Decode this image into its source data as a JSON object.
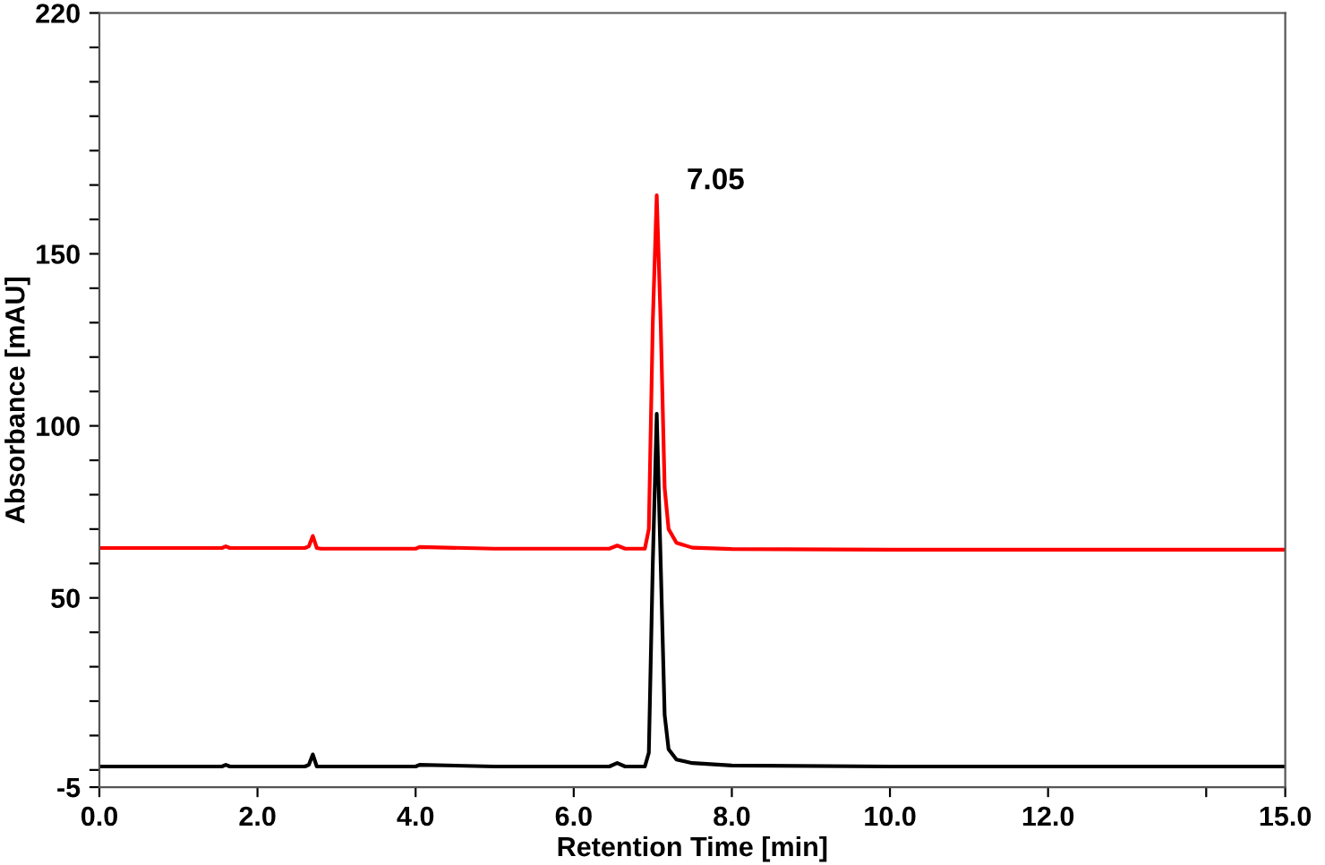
{
  "chart_data": {
    "type": "line",
    "xlabel": "Retention Time [min]",
    "ylabel": "Absorbance [mAU]",
    "xlim": [
      0,
      15
    ],
    "ylim": [
      -5,
      220
    ],
    "xticks": [
      {
        "value": 0,
        "label": "0.0"
      },
      {
        "value": 2,
        "label": "2.0"
      },
      {
        "value": 4,
        "label": "4.0"
      },
      {
        "value": 6,
        "label": "6.0"
      },
      {
        "value": 8,
        "label": "8.0"
      },
      {
        "value": 10,
        "label": "10.0"
      },
      {
        "value": 12,
        "label": "12.0"
      },
      {
        "value": 14,
        "label": null
      },
      {
        "value": 15,
        "label": "15.0"
      }
    ],
    "yticks": [
      -5,
      {
        "value": 0,
        "label": null
      },
      {
        "value": 10,
        "label": null
      },
      {
        "value": 20,
        "label": null
      },
      {
        "value": 30,
        "label": null
      },
      {
        "value": 40,
        "label": null
      },
      50,
      {
        "value": 60,
        "label": null
      },
      {
        "value": 70,
        "label": null
      },
      {
        "value": 80,
        "label": null
      },
      {
        "value": 90,
        "label": null
      },
      100,
      {
        "value": 110,
        "label": null
      },
      {
        "value": 120,
        "label": null
      },
      {
        "value": 130,
        "label": null
      },
      {
        "value": 140,
        "label": null
      },
      150,
      {
        "value": 160,
        "label": null
      },
      {
        "value": 170,
        "label": null
      },
      {
        "value": 180,
        "label": null
      },
      {
        "value": 190,
        "label": null
      },
      {
        "value": 200,
        "label": null
      },
      {
        "value": 210,
        "label": null
      },
      220
    ],
    "grid": false,
    "legend": false,
    "marker": "none",
    "line_style": "solid",
    "annotations": [
      {
        "text": "7.05",
        "x": 7.05,
        "y": 167
      }
    ],
    "series": [
      {
        "color": "#ff0000",
        "x": [
          0,
          1.55,
          1.6,
          1.65,
          2.6,
          2.65,
          2.7,
          2.75,
          2.8,
          3.5,
          4.0,
          4.05,
          5.0,
          6.45,
          6.55,
          6.65,
          6.9,
          6.95,
          7.0,
          7.05,
          7.1,
          7.15,
          7.2,
          7.3,
          7.5,
          8.0,
          10.0,
          12.0,
          15.0
        ],
        "values": [
          64.5,
          64.5,
          65,
          64.5,
          64.5,
          65,
          68,
          64.5,
          64.3,
          64.3,
          64.3,
          64.8,
          64.3,
          64.3,
          65.2,
          64.3,
          64.3,
          70,
          130,
          167,
          130,
          82,
          70,
          66,
          64.6,
          64.2,
          64,
          64,
          64
        ]
      },
      {
        "color": "#000000",
        "x": [
          0,
          1.55,
          1.6,
          1.65,
          2.6,
          2.65,
          2.7,
          2.75,
          2.8,
          3.5,
          4.0,
          4.05,
          5.0,
          6.45,
          6.55,
          6.65,
          6.9,
          6.95,
          7.0,
          7.05,
          7.1,
          7.15,
          7.2,
          7.3,
          7.5,
          8.0,
          10.0,
          12.0,
          15.0
        ],
        "values": [
          1,
          1,
          1.5,
          1,
          1,
          1.5,
          4.5,
          1,
          1,
          1,
          1,
          1.5,
          1,
          1,
          2,
          1,
          1,
          5,
          60,
          103.5,
          60,
          16,
          6,
          3,
          2,
          1.3,
          1,
          1,
          1
        ]
      }
    ]
  }
}
